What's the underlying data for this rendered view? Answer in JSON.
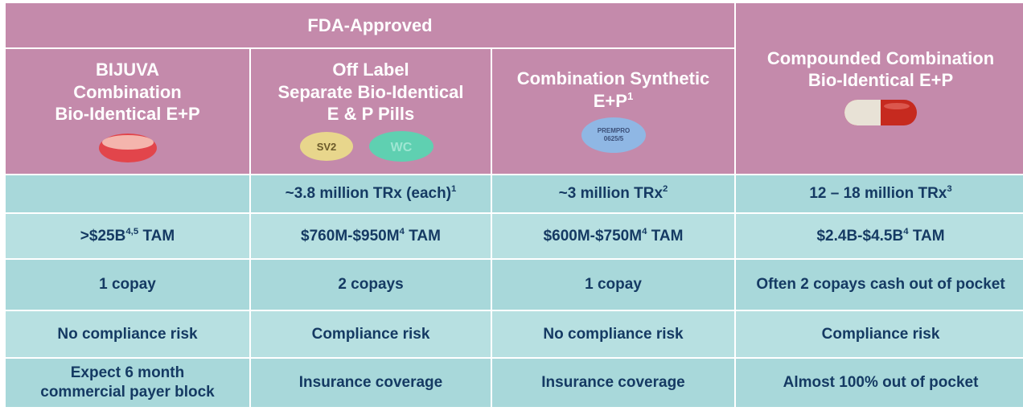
{
  "header": {
    "group": "FDA-Approved",
    "columns": [
      {
        "lines": [
          [
            "BIJUVA"
          ],
          [
            "Combination"
          ],
          [
            "Bio-Identical E+P"
          ]
        ]
      },
      {
        "lines": [
          [
            "Off Label"
          ],
          [
            "Separate Bio-Identical"
          ],
          [
            "E & P Pills"
          ]
        ],
        "pills": [
          "SV2",
          "WC"
        ]
      },
      {
        "lines": [
          [
            "Combination Synthetic"
          ],
          [
            "E+P",
            {
              "sup": "1"
            }
          ]
        ],
        "pills": [
          "PREMPRO",
          "0625/5"
        ]
      },
      {
        "lines": [
          [
            "Compounded Combination"
          ],
          [
            "Bio-Identical E+P"
          ]
        ]
      }
    ]
  },
  "rows": [
    [
      [],
      [
        [
          "~3.8 million TRx (each)",
          {
            "sup": "1"
          }
        ]
      ],
      [
        [
          "~3 million TRx",
          {
            "sup": "2"
          }
        ]
      ],
      [
        [
          "12 – 18 million TRx",
          {
            "sup": "3"
          }
        ]
      ]
    ],
    [
      [
        [
          ">$25B",
          {
            "sup": "4,5"
          },
          " TAM"
        ]
      ],
      [
        [
          "$760M-$950M",
          {
            "sup": "4"
          },
          " TAM"
        ]
      ],
      [
        [
          "$600M-$750M",
          {
            "sup": "4"
          },
          " TAM"
        ]
      ],
      [
        [
          "$2.4B-$4.5B",
          {
            "sup": "4"
          },
          " TAM"
        ]
      ]
    ],
    [
      [
        [
          "1 copay"
        ]
      ],
      [
        [
          "2 copays"
        ]
      ],
      [
        [
          "1 copay"
        ]
      ],
      [
        [
          "Often 2 copays cash out of pocket"
        ]
      ]
    ],
    [
      [
        [
          "No compliance risk"
        ]
      ],
      [
        [
          "Compliance risk"
        ]
      ],
      [
        [
          "No compliance risk"
        ]
      ],
      [
        [
          "Compliance risk"
        ]
      ]
    ],
    [
      [
        [
          "Expect 6 month"
        ],
        [
          "commercial payer block"
        ]
      ],
      [
        [
          "Insurance coverage"
        ]
      ],
      [
        [
          "Insurance coverage"
        ]
      ],
      [
        [
          "Almost 100% out of pocket"
        ]
      ]
    ]
  ]
}
